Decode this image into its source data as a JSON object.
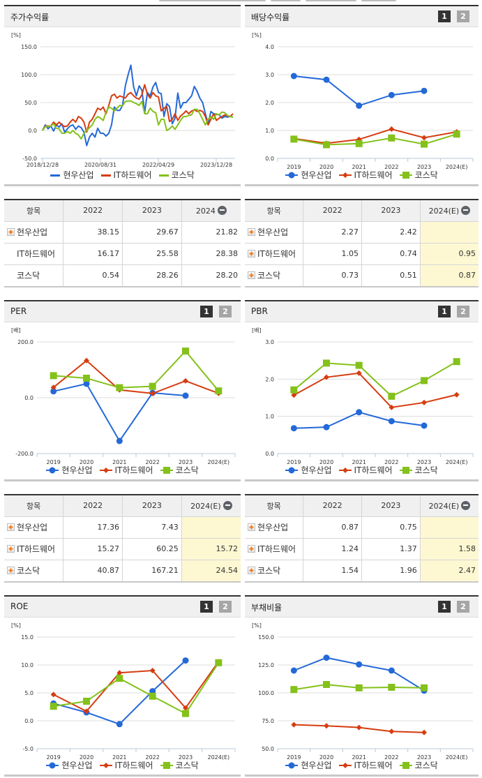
{
  "series_names": [
    "현우산업",
    "IT하드웨어",
    "코스닥"
  ],
  "colors": {
    "company": "#2369d8",
    "industry": "#d63c10",
    "index": "#84c11a",
    "est_bg": "#fdf8d2",
    "header_bar": "#333333"
  },
  "pager": {
    "on": "1",
    "off": "2"
  },
  "panels": {
    "stock_return": {
      "title": "주가수익률",
      "unit": "[%]"
    },
    "dividend_yield": {
      "title": "배당수익률",
      "unit": "[%]"
    },
    "per": {
      "title": "PER",
      "unit": "[배]"
    },
    "pbr": {
      "title": "PBR",
      "unit": "[배]"
    },
    "roe": {
      "title": "ROE",
      "unit": "[%]"
    },
    "debt_ratio": {
      "title": "부채비율",
      "unit": "[%]"
    }
  },
  "tables": {
    "stock_return": {
      "headers": [
        "항목",
        "2022",
        "2023",
        "2024"
      ],
      "rows": [
        {
          "label": "현우산업",
          "expandable": true,
          "values": [
            "38.15",
            "29.67",
            "21.82"
          ]
        },
        {
          "label": "IT하드웨어",
          "expandable": false,
          "values": [
            "16.17",
            "25.58",
            "28.38"
          ]
        },
        {
          "label": "코스닥",
          "expandable": false,
          "values": [
            "0.54",
            "28.26",
            "28.20"
          ]
        }
      ]
    },
    "dividend_yield": {
      "headers": [
        "항목",
        "2022",
        "2023",
        "2024(E)"
      ],
      "rows": [
        {
          "label": "현우산업",
          "expandable": true,
          "values": [
            "2.27",
            "2.42",
            ""
          ]
        },
        {
          "label": "IT하드웨어",
          "expandable": true,
          "values": [
            "1.05",
            "0.74",
            "0.95"
          ]
        },
        {
          "label": "코스닥",
          "expandable": true,
          "values": [
            "0.73",
            "0.51",
            "0.87"
          ]
        }
      ]
    },
    "per": {
      "headers": [
        "항목",
        "2022",
        "2023",
        "2024(E)"
      ],
      "rows": [
        {
          "label": "현우산업",
          "expandable": true,
          "values": [
            "17.36",
            "7.43",
            ""
          ]
        },
        {
          "label": "IT하드웨어",
          "expandable": true,
          "values": [
            "15.27",
            "60.25",
            "15.72"
          ]
        },
        {
          "label": "코스닥",
          "expandable": true,
          "values": [
            "40.87",
            "167.21",
            "24.54"
          ]
        }
      ]
    },
    "pbr": {
      "headers": [
        "항목",
        "2022",
        "2023",
        "2024(E)"
      ],
      "rows": [
        {
          "label": "현우산업",
          "expandable": true,
          "values": [
            "0.87",
            "0.75",
            ""
          ]
        },
        {
          "label": "IT하드웨어",
          "expandable": true,
          "values": [
            "1.24",
            "1.37",
            "1.58"
          ]
        },
        {
          "label": "코스닥",
          "expandable": true,
          "values": [
            "1.54",
            "1.96",
            "2.47"
          ]
        }
      ]
    }
  },
  "chart_data": [
    {
      "id": "stock_return",
      "type": "line",
      "title": "주가수익률",
      "ylabel": "[%]",
      "ylim": [
        -50,
        150
      ],
      "yticks": [
        "150.0",
        "100.0",
        "50.0",
        "0.0",
        "-50.0"
      ],
      "xticks": [
        "2018/12/28",
        "2020/08/31",
        "2022/04/29",
        "2023/12/28"
      ],
      "grid": true,
      "legend_position": "bottom",
      "series": [
        {
          "name": "현우산업",
          "values": [
            0,
            10,
            3,
            8,
            -1,
            10,
            6,
            12,
            -3,
            3,
            8,
            10,
            2,
            8,
            5,
            -3,
            -27,
            -12,
            -5,
            -12,
            4,
            -5,
            -5,
            -10,
            -5,
            10,
            42,
            36,
            36,
            45,
            80,
            100,
            117,
            78,
            62,
            80,
            72,
            32,
            68,
            62,
            78,
            86,
            68,
            66,
            25,
            48,
            43,
            12,
            22,
            67,
            40,
            50,
            50,
            56,
            62,
            79,
            70,
            58,
            50,
            30,
            12,
            34,
            30,
            29,
            28,
            22,
            25,
            24,
            25,
            24
          ]
        },
        {
          "name": "IT하드웨어",
          "values": [
            0,
            8,
            8,
            8,
            15,
            10,
            15,
            10,
            7,
            8,
            15,
            20,
            15,
            25,
            22,
            15,
            -3,
            15,
            20,
            30,
            40,
            37,
            42,
            30,
            45,
            62,
            65,
            58,
            62,
            60,
            58,
            65,
            68,
            62,
            58,
            56,
            64,
            82,
            65,
            58,
            68,
            62,
            60,
            35,
            40,
            43,
            16,
            20,
            30,
            18,
            26,
            30,
            35,
            30,
            35,
            37,
            34,
            36,
            34,
            25,
            10,
            20,
            30,
            18,
            22,
            25,
            28,
            26,
            25,
            30
          ]
        },
        {
          "name": "코스닥",
          "values": [
            0,
            7,
            7,
            8,
            12,
            4,
            3,
            -5,
            -5,
            -2,
            -5,
            0,
            -5,
            -8,
            -15,
            -5,
            0,
            5,
            10,
            20,
            25,
            22,
            18,
            33,
            42,
            40,
            35,
            40,
            45,
            44,
            52,
            53,
            53,
            50,
            48,
            45,
            52,
            30,
            30,
            40,
            34,
            32,
            10,
            20,
            20,
            0,
            3,
            8,
            2,
            10,
            18,
            25,
            25,
            27,
            28,
            38,
            38,
            30,
            20,
            10,
            20,
            25,
            20,
            30,
            28,
            33,
            32,
            27,
            25,
            24
          ]
        }
      ]
    },
    {
      "id": "dividend_yield",
      "type": "line",
      "title": "배당수익률",
      "ylabel": "[%]",
      "ylim": [
        0,
        4
      ],
      "yticks": [
        "4.0",
        "3.0",
        "2.0",
        "1.0",
        "0.0"
      ],
      "categories": [
        "2019",
        "2020",
        "2021",
        "2022",
        "2023",
        "2024(E)"
      ],
      "grid": true,
      "legend_position": "bottom",
      "series": [
        {
          "name": "현우산업",
          "values": [
            2.95,
            2.82,
            1.89,
            2.27,
            2.42,
            null
          ]
        },
        {
          "name": "IT하드웨어",
          "values": [
            0.71,
            0.54,
            0.68,
            1.05,
            0.74,
            0.95
          ]
        },
        {
          "name": "코스닥",
          "values": [
            0.69,
            0.49,
            0.53,
            0.73,
            0.51,
            0.87
          ]
        }
      ]
    },
    {
      "id": "per",
      "type": "line",
      "title": "PER",
      "ylabel": "[배]",
      "ylim": [
        -200,
        200
      ],
      "yticks": [
        "200.0",
        "0.0",
        "-200.0"
      ],
      "categories": [
        "2019",
        "2020",
        "2021",
        "2022",
        "2023",
        "2024(E)"
      ],
      "grid": true,
      "legend_position": "bottom",
      "series": [
        {
          "name": "현우산업",
          "values": [
            23,
            50,
            -155,
            17.36,
            7.43,
            null
          ]
        },
        {
          "name": "IT하드웨어",
          "values": [
            37,
            133,
            28,
            15.27,
            60.25,
            15.72
          ]
        },
        {
          "name": "코스닥",
          "values": [
            79,
            70,
            36,
            40.87,
            167.21,
            24.54
          ]
        }
      ]
    },
    {
      "id": "pbr",
      "type": "line",
      "title": "PBR",
      "ylabel": "[배]",
      "ylim": [
        0,
        3
      ],
      "yticks": [
        "3.0",
        "2.0",
        "1.0",
        "0.0"
      ],
      "categories": [
        "2019",
        "2020",
        "2021",
        "2022",
        "2023",
        "2024(E)"
      ],
      "grid": true,
      "legend_position": "bottom",
      "series": [
        {
          "name": "현우산업",
          "values": [
            0.68,
            0.71,
            1.11,
            0.87,
            0.75,
            null
          ]
        },
        {
          "name": "IT하드웨어",
          "values": [
            1.57,
            2.05,
            2.16,
            1.24,
            1.37,
            1.58
          ]
        },
        {
          "name": "코스닥",
          "values": [
            1.71,
            2.43,
            2.37,
            1.54,
            1.96,
            2.47
          ]
        }
      ]
    },
    {
      "id": "roe",
      "type": "line",
      "title": "ROE",
      "ylabel": "[%]",
      "ylim": [
        -5,
        15
      ],
      "yticks": [
        "15.0",
        "10.0",
        "5.0",
        "0.0",
        "-5.0"
      ],
      "categories": [
        "2019",
        "2020",
        "2021",
        "2022",
        "2023",
        "2024(E)"
      ],
      "grid": true,
      "legend_position": "bottom",
      "series": [
        {
          "name": "현우산업",
          "values": [
            3.1,
            1.5,
            -0.6,
            5.3,
            10.8,
            null
          ]
        },
        {
          "name": "IT하드웨어",
          "values": [
            4.7,
            1.7,
            8.6,
            9.0,
            2.3,
            10.6
          ]
        },
        {
          "name": "코스닥",
          "values": [
            2.6,
            3.5,
            7.6,
            4.4,
            1.3,
            10.4
          ]
        }
      ]
    },
    {
      "id": "debt_ratio",
      "type": "line",
      "title": "부채비율",
      "ylabel": "[%]",
      "ylim": [
        50,
        150
      ],
      "yticks": [
        "150.0",
        "125.0",
        "100.0",
        "75.0",
        "50.0"
      ],
      "categories": [
        "2019",
        "2020",
        "2021",
        "2022",
        "2023",
        "2024(E)"
      ],
      "grid": true,
      "legend_position": "bottom",
      "series": [
        {
          "name": "현우산업",
          "values": [
            120,
            131.5,
            125.5,
            120,
            102,
            null
          ]
        },
        {
          "name": "IT하드웨어",
          "values": [
            71.5,
            70.5,
            69,
            65.5,
            64.5,
            null
          ]
        },
        {
          "name": "코스닥",
          "values": [
            103,
            107.5,
            104.5,
            105,
            104.5,
            null
          ]
        }
      ]
    }
  ]
}
